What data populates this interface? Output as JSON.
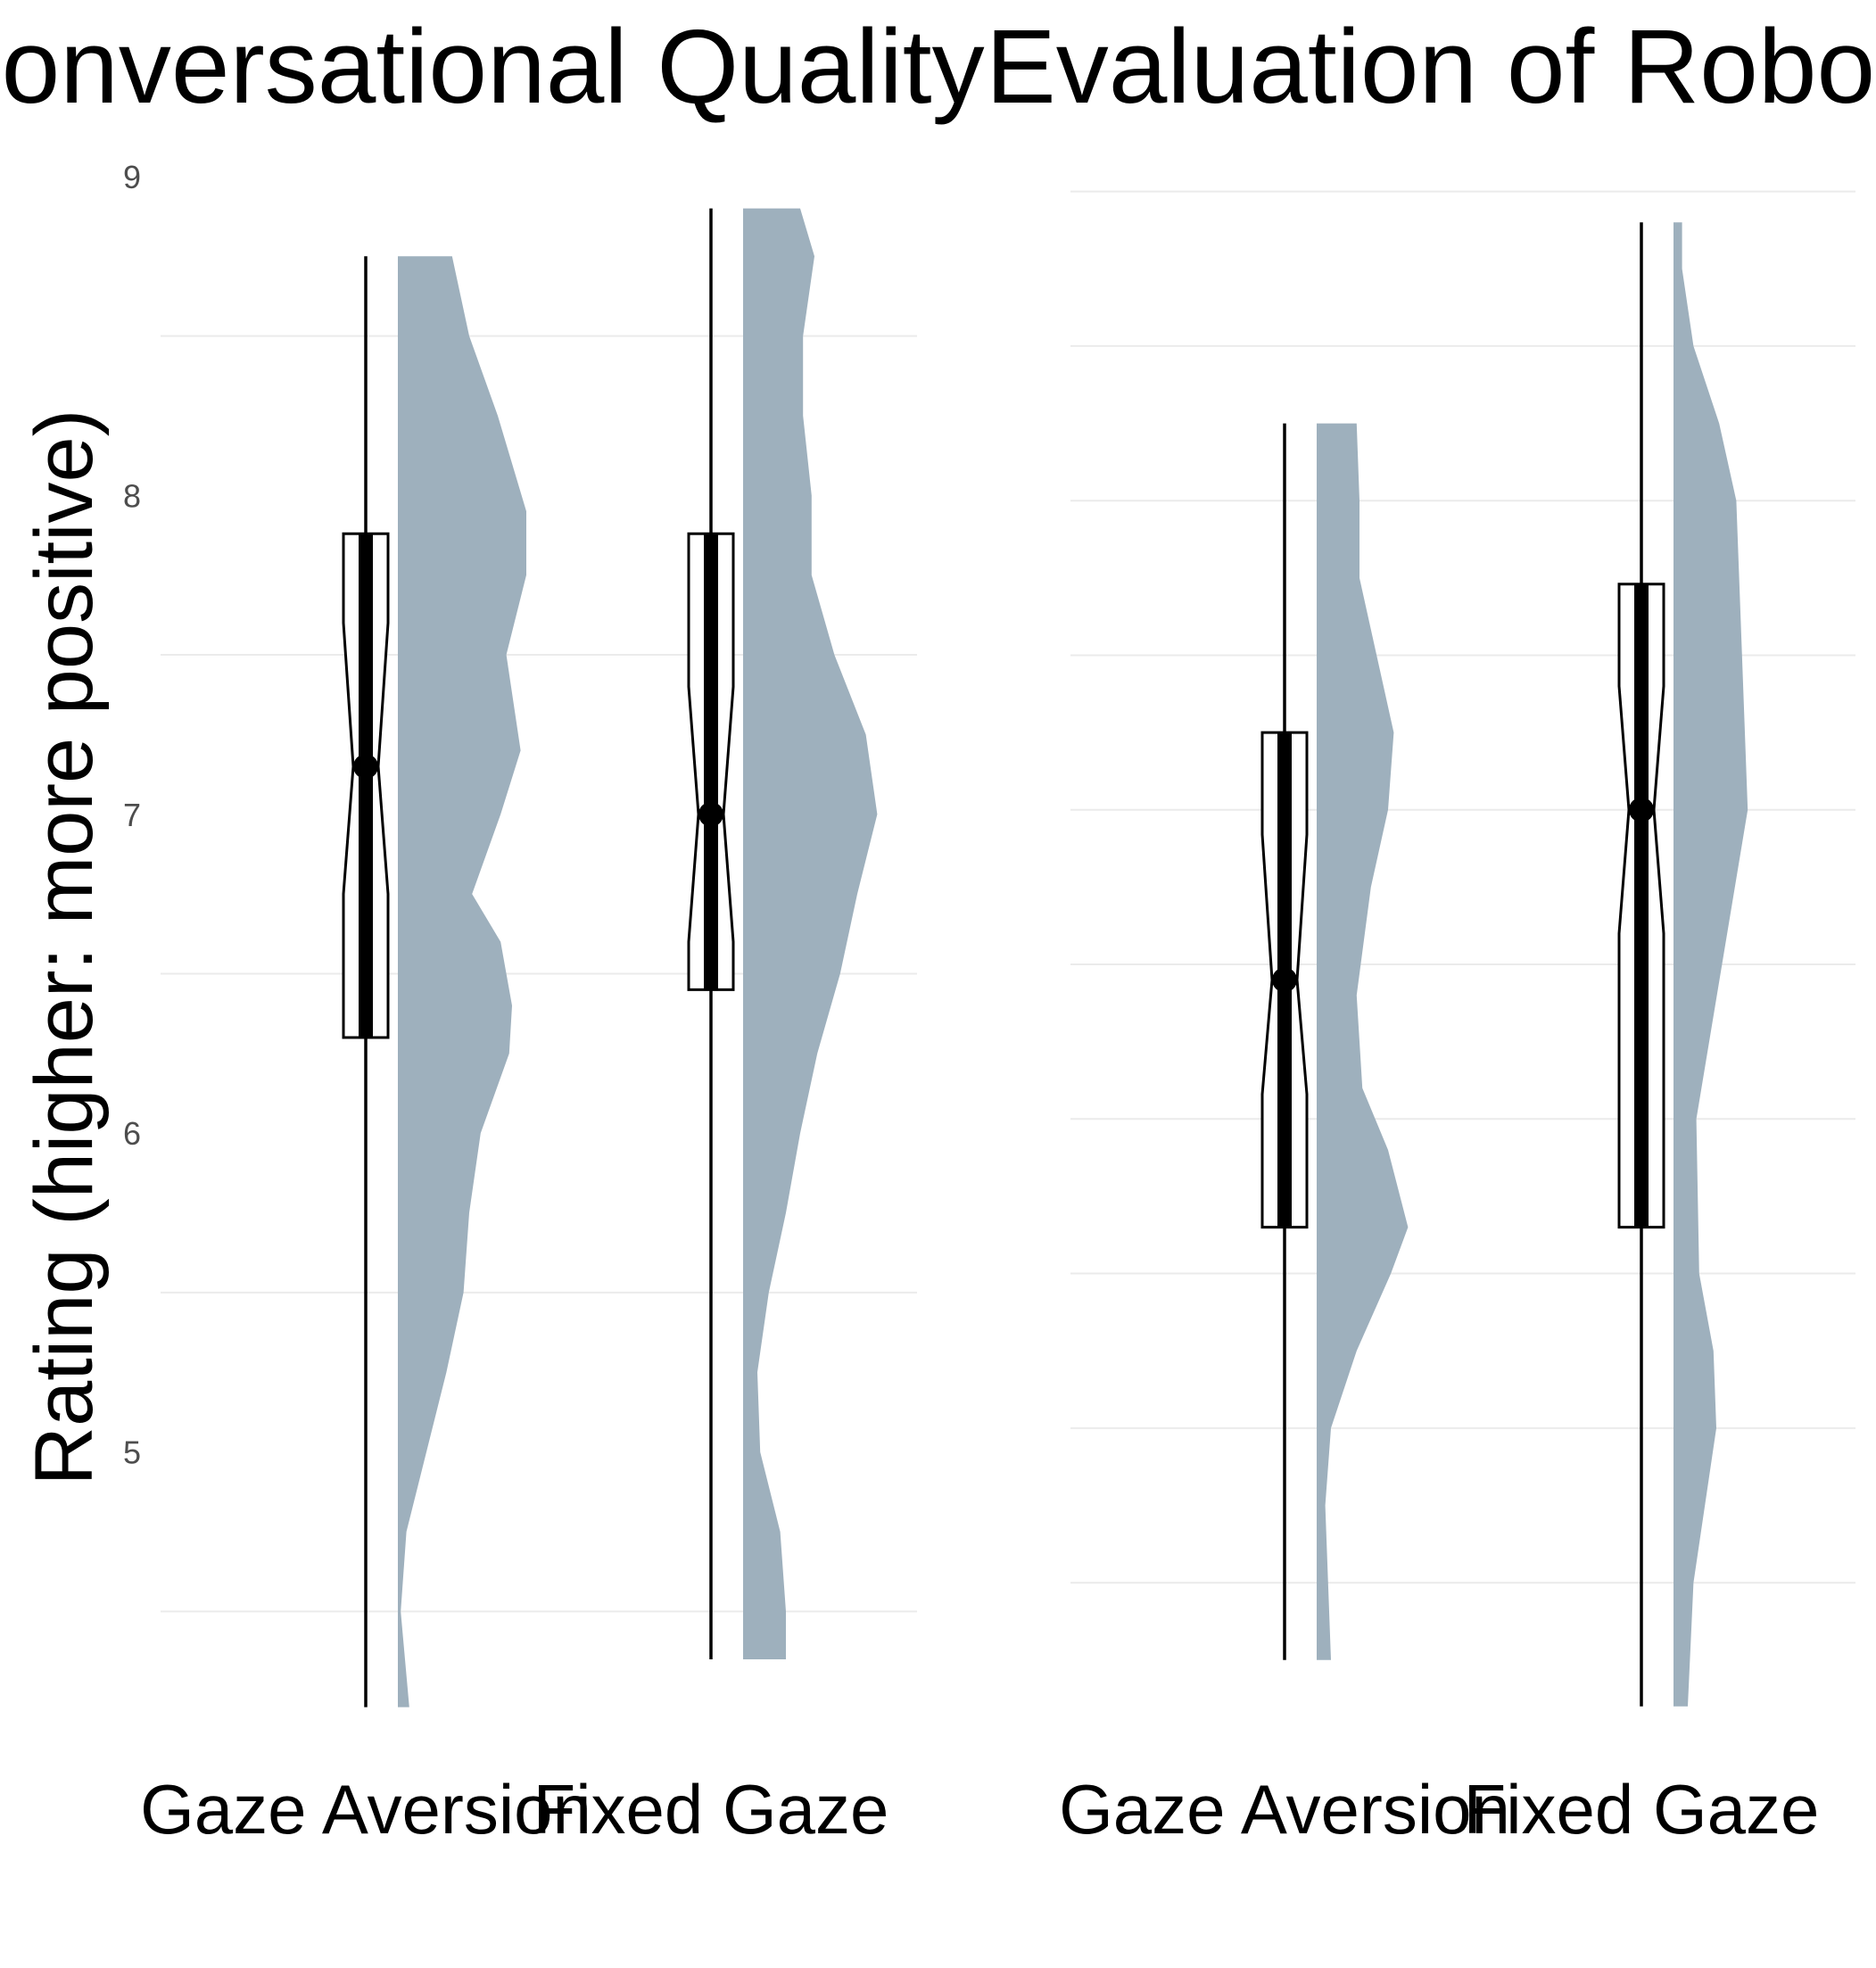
{
  "colors": {
    "violin_fill": "#9eb0bd",
    "gridline": "#ebebeb",
    "box_stroke": "#000000",
    "text": "#000000",
    "tick_text": "#4d4d4d"
  },
  "chart_data": [
    {
      "type": "violin",
      "title": "Conversational Quality",
      "ylabel": "Rating (higher: more positive)",
      "ylim": [
        4.28,
        9.05
      ],
      "yticks": [
        5,
        6,
        7,
        8,
        9
      ],
      "grid": true,
      "categories": [
        "Gaze Aversion",
        "Fixed Gaze"
      ],
      "groups": [
        {
          "name": "Gaze Aversion",
          "whisker_low": 4.2,
          "whisker_high": 8.75,
          "q1": 6.3,
          "median": 7.15,
          "q3": 7.88,
          "notch_low": 6.75,
          "notch_high": 7.6,
          "density": [
            [
              4.2,
              0.04
            ],
            [
              4.5,
              0.01
            ],
            [
              4.75,
              0.03
            ],
            [
              5.0,
              0.1
            ],
            [
              5.25,
              0.17
            ],
            [
              5.5,
              0.23
            ],
            [
              5.75,
              0.25
            ],
            [
              6.0,
              0.29
            ],
            [
              6.25,
              0.39
            ],
            [
              6.4,
              0.4
            ],
            [
              6.6,
              0.36
            ],
            [
              6.75,
              0.26
            ],
            [
              7.0,
              0.36
            ],
            [
              7.2,
              0.43
            ],
            [
              7.5,
              0.38
            ],
            [
              7.75,
              0.45
            ],
            [
              7.95,
              0.45
            ],
            [
              8.25,
              0.35
            ],
            [
              8.5,
              0.25
            ],
            [
              8.75,
              0.19
            ]
          ]
        },
        {
          "name": "Fixed Gaze",
          "whisker_low": 4.35,
          "whisker_high": 8.9,
          "q1": 6.45,
          "median": 7.0,
          "q3": 7.88,
          "notch_low": 6.6,
          "notch_high": 7.4,
          "density": [
            [
              4.35,
              0.15
            ],
            [
              4.5,
              0.15
            ],
            [
              4.75,
              0.13
            ],
            [
              5.0,
              0.06
            ],
            [
              5.25,
              0.05
            ],
            [
              5.5,
              0.09
            ],
            [
              5.75,
              0.15
            ],
            [
              6.0,
              0.2
            ],
            [
              6.25,
              0.26
            ],
            [
              6.5,
              0.34
            ],
            [
              6.75,
              0.4
            ],
            [
              7.0,
              0.47
            ],
            [
              7.25,
              0.43
            ],
            [
              7.5,
              0.32
            ],
            [
              7.75,
              0.24
            ],
            [
              8.0,
              0.24
            ],
            [
              8.25,
              0.21
            ],
            [
              8.5,
              0.21
            ],
            [
              8.75,
              0.25
            ],
            [
              8.9,
              0.2
            ]
          ]
        }
      ]
    },
    {
      "type": "violin",
      "title": "Evaluation of Robot",
      "ylabel": "",
      "ylim": [
        1.18,
        6.1
      ],
      "yticks": [],
      "grid": true,
      "categories": [
        "Gaze Aversion",
        "Fixed Gaze"
      ],
      "groups": [
        {
          "name": "Gaze Aversion",
          "whisker_low": 1.25,
          "whisker_high": 5.25,
          "q1": 2.65,
          "median": 3.45,
          "q3": 4.25,
          "notch_low": 3.08,
          "notch_high": 3.92,
          "density": [
            [
              1.25,
              0.05
            ],
            [
              1.5,
              0.04
            ],
            [
              1.75,
              0.03
            ],
            [
              2.0,
              0.05
            ],
            [
              2.25,
              0.14
            ],
            [
              2.5,
              0.26
            ],
            [
              2.65,
              0.32
            ],
            [
              2.9,
              0.25
            ],
            [
              3.1,
              0.16
            ],
            [
              3.4,
              0.14
            ],
            [
              3.75,
              0.19
            ],
            [
              4.0,
              0.25
            ],
            [
              4.25,
              0.27
            ],
            [
              4.5,
              0.21
            ],
            [
              4.75,
              0.15
            ],
            [
              5.0,
              0.15
            ],
            [
              5.25,
              0.14
            ]
          ]
        },
        {
          "name": "Fixed Gaze",
          "whisker_low": 1.1,
          "whisker_high": 5.9,
          "q1": 2.65,
          "median": 4.0,
          "q3": 4.73,
          "notch_low": 3.6,
          "notch_high": 4.4,
          "density": [
            [
              1.1,
              0.05
            ],
            [
              1.5,
              0.07
            ],
            [
              2.0,
              0.15
            ],
            [
              2.25,
              0.14
            ],
            [
              2.5,
              0.09
            ],
            [
              3.0,
              0.08
            ],
            [
              3.5,
              0.17
            ],
            [
              4.0,
              0.26
            ],
            [
              4.5,
              0.24
            ],
            [
              5.0,
              0.22
            ],
            [
              5.25,
              0.16
            ],
            [
              5.5,
              0.07
            ],
            [
              5.75,
              0.03
            ],
            [
              5.9,
              0.03
            ]
          ]
        }
      ]
    }
  ]
}
